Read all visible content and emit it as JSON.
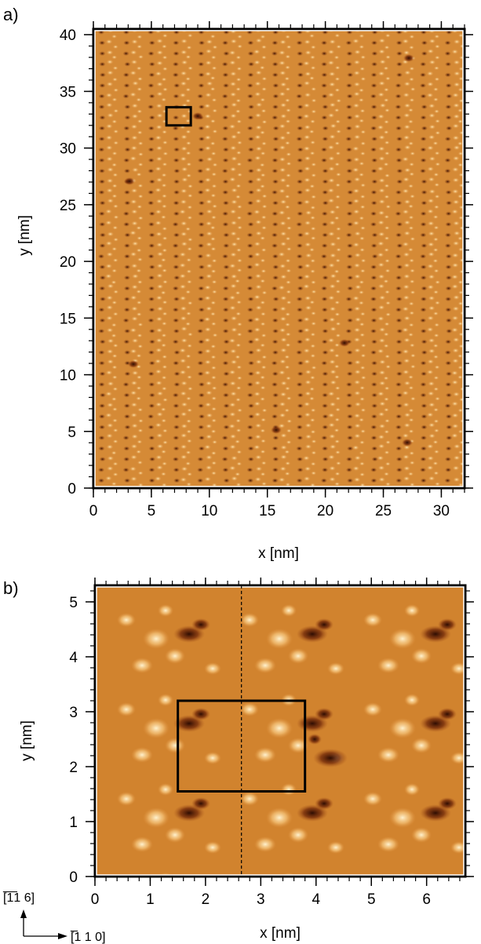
{
  "figure": {
    "panel_a": {
      "label": "a)",
      "xlabel": "x [nm]",
      "ylabel": "y [nm]",
      "xticks": [
        "0",
        "5",
        "10",
        "15",
        "20",
        "25",
        "30"
      ],
      "yticks": [
        "0",
        "5",
        "10",
        "15",
        "20",
        "25",
        "30",
        "35",
        "40"
      ],
      "xlim": [
        0,
        32
      ],
      "ylim": [
        0,
        40.5
      ]
    },
    "panel_b": {
      "label": "b)",
      "xlabel": "x [nm]",
      "ylabel": "y [nm]",
      "xticks": [
        "0",
        "1",
        "2",
        "3",
        "4",
        "5",
        "6"
      ],
      "yticks": [
        "0",
        "1",
        "2",
        "3",
        "4",
        "5"
      ],
      "xlim": [
        0,
        6.7
      ],
      "ylim": [
        0,
        5.3
      ]
    },
    "directions": {
      "vertical": "[̅1̅1 6]",
      "horizontal": "[̅1 1 0]"
    },
    "colors": {
      "stm_mid": "#d1832e",
      "stm_dark": "#3c1204",
      "stm_bright": "#fbe6b4"
    }
  },
  "chart_data": [
    {
      "type": "heatmap",
      "title": "",
      "xlabel": "x [nm]",
      "ylabel": "y [nm]",
      "xlim": [
        0,
        32
      ],
      "ylim": [
        0,
        40.5
      ],
      "xticks": [
        0,
        5,
        10,
        15,
        20,
        25,
        30
      ],
      "yticks": [
        0,
        5,
        10,
        15,
        20,
        25,
        30,
        35,
        40
      ],
      "box_nm": {
        "x0": 6.3,
        "x1": 8.4,
        "y0": 32.0,
        "y1": 33.6
      }
    },
    {
      "type": "heatmap",
      "title": "",
      "xlabel": "x [nm]",
      "ylabel": "y [nm]",
      "xlim": [
        0,
        6.7
      ],
      "ylim": [
        0,
        5.3
      ],
      "xticks": [
        0,
        1,
        2,
        3,
        4,
        5,
        6
      ],
      "yticks": [
        0,
        1,
        2,
        3,
        4,
        5
      ],
      "box_nm": {
        "x0": 1.5,
        "x1": 3.8,
        "y0": 1.55,
        "y1": 3.2
      },
      "dashed_line_x_nm": 2.65
    }
  ]
}
